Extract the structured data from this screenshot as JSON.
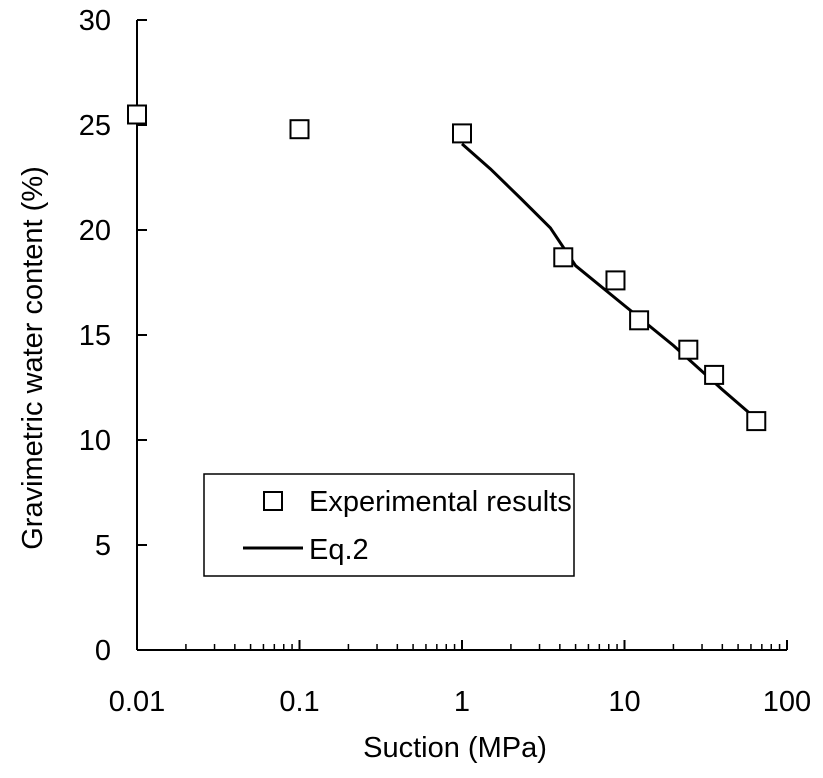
{
  "chart_data": {
    "type": "scatter",
    "title": "",
    "xlabel": "Suction (MPa)",
    "ylabel": "Gravimetric water content (%)",
    "x_scale": "log",
    "xlim": [
      0.01,
      100
    ],
    "ylim": [
      0,
      30
    ],
    "x_ticks": [
      "0.01",
      "0.1",
      "1",
      "10",
      "100"
    ],
    "y_ticks": [
      "0",
      "5",
      "10",
      "15",
      "20",
      "25",
      "30"
    ],
    "grid": false,
    "legend_position": "lower-left",
    "series": [
      {
        "name": "Experimental results",
        "kind": "scatter",
        "marker": "open-square",
        "color": "#000000",
        "points": [
          [
            0.01,
            25.5
          ],
          [
            0.1,
            24.8
          ],
          [
            1.0,
            24.6
          ],
          [
            4.2,
            18.7
          ],
          [
            8.8,
            17.6
          ],
          [
            12.3,
            15.7
          ],
          [
            24.7,
            14.3
          ],
          [
            35.6,
            13.1
          ],
          [
            64.7,
            10.9
          ]
        ]
      },
      {
        "name": "Eq.2",
        "kind": "line",
        "color": "#000000",
        "points": [
          [
            1.0,
            24.1
          ],
          [
            1.5,
            22.9
          ],
          [
            2.3,
            21.5
          ],
          [
            3.5,
            20.1
          ],
          [
            5.0,
            18.3
          ],
          [
            10.0,
            16.4
          ],
          [
            20.0,
            14.5
          ],
          [
            40.0,
            12.4
          ],
          [
            64.7,
            11.0
          ]
        ]
      }
    ]
  }
}
